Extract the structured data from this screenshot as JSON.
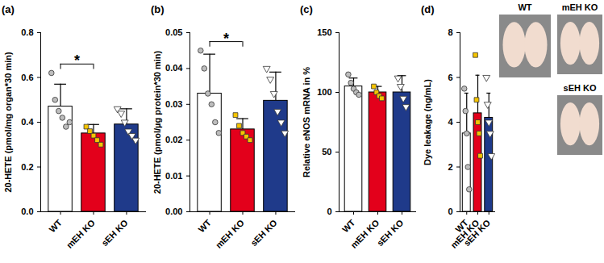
{
  "chart_data": [
    {
      "type": "bar",
      "title": "(a)",
      "ylabel": "20-HETE (pmol/mg organ*30 min)",
      "categories": [
        "WT",
        "mEH KO",
        "sEH KO"
      ],
      "values": [
        0.47,
        0.35,
        0.39
      ],
      "errors": [
        0.1,
        0.04,
        0.07
      ],
      "colors": [
        "#ffffff",
        "#e3001b",
        "#1f3a8a"
      ],
      "points": [
        {
          "color": "#bdbdbd",
          "marker": "circle",
          "values": [
            0.62,
            0.5,
            0.45,
            0.42,
            0.38,
            0.4
          ]
        },
        {
          "color": "#f5c400",
          "marker": "square",
          "values": [
            0.38,
            0.36,
            0.34,
            0.32,
            0.3
          ]
        },
        {
          "color": "#ffffff",
          "marker": "triangle-down",
          "values": [
            0.46,
            0.44,
            0.4,
            0.36,
            0.34,
            0.32
          ]
        }
      ],
      "ylim": [
        0,
        0.8
      ],
      "yticks": [
        {
          "value": 0,
          "label": "0.0"
        },
        {
          "value": 0.2,
          "label": "0.2"
        },
        {
          "value": 0.4,
          "label": "0.4"
        },
        {
          "value": 0.6,
          "label": "0.6"
        },
        {
          "value": 0.8,
          "label": "0.8"
        }
      ],
      "annotations": [
        {
          "text": "*",
          "from": 0,
          "to": 1
        }
      ]
    },
    {
      "type": "bar",
      "title": "(b)",
      "ylabel": "20-HETE (pmol/µg protein*30 min)",
      "categories": [
        "WT",
        "mEH KO",
        "sEH KO"
      ],
      "values": [
        0.033,
        0.023,
        0.031
      ],
      "errors": [
        0.011,
        0.003,
        0.008
      ],
      "colors": [
        "#ffffff",
        "#e3001b",
        "#1f3a8a"
      ],
      "points": [
        {
          "color": "#bdbdbd",
          "marker": "circle",
          "values": [
            0.045,
            0.04,
            0.033,
            0.03,
            0.025,
            0.022
          ]
        },
        {
          "color": "#f5c400",
          "marker": "square",
          "values": [
            0.027,
            0.024,
            0.022,
            0.021,
            0.02
          ]
        },
        {
          "color": "#ffffff",
          "marker": "triangle-down",
          "values": [
            0.04,
            0.037,
            0.033,
            0.028,
            0.025,
            0.022
          ]
        }
      ],
      "ylim": [
        0,
        0.05
      ],
      "yticks": [
        {
          "value": 0,
          "label": "0.00"
        },
        {
          "value": 0.01,
          "label": "0.01"
        },
        {
          "value": 0.02,
          "label": "0.02"
        },
        {
          "value": 0.03,
          "label": "0.03"
        },
        {
          "value": 0.04,
          "label": "0.04"
        },
        {
          "value": 0.05,
          "label": "0.05"
        }
      ],
      "annotations": [
        {
          "text": "*",
          "from": 0,
          "to": 1
        }
      ]
    },
    {
      "type": "bar",
      "title": "(c)",
      "ylabel": "Relative eNOS mRNA in %",
      "categories": [
        "WT",
        "mEH KO",
        "sEH KO"
      ],
      "values": [
        105,
        100,
        100
      ],
      "errors": [
        7,
        5,
        14
      ],
      "colors": [
        "#ffffff",
        "#e3001b",
        "#1f3a8a"
      ],
      "points": [
        {
          "color": "#bdbdbd",
          "marker": "circle",
          "values": [
            115,
            108,
            103,
            100,
            98
          ]
        },
        {
          "color": "#f5c400",
          "marker": "square",
          "values": [
            105,
            100,
            97,
            95
          ]
        },
        {
          "color": "#ffffff",
          "marker": "triangle-down",
          "values": [
            112,
            105,
            95,
            88
          ]
        }
      ],
      "ylim": [
        0,
        150
      ],
      "yticks": [
        0,
        50,
        100,
        150
      ],
      "annotations": []
    },
    {
      "type": "bar",
      "title": "(d)",
      "ylabel": "Dye leakage (ng/mL)",
      "categories": [
        "WT",
        "mEH KO",
        "sEH KO"
      ],
      "values": [
        3.5,
        4.4,
        4.2
      ],
      "errors": [
        1.8,
        1.7,
        1.1
      ],
      "colors": [
        "#ffffff",
        "#e3001b",
        "#1f3a8a"
      ],
      "points": [
        {
          "color": "#bdbdbd",
          "marker": "circle",
          "values": [
            5.5,
            4.5,
            3.5,
            2.0,
            1.0
          ]
        },
        {
          "color": "#f5c400",
          "marker": "square",
          "values": [
            7.0,
            5.0,
            4.0,
            3.5,
            2.5
          ]
        },
        {
          "color": "#ffffff",
          "marker": "triangle-down",
          "values": [
            6.0,
            4.8,
            4.0,
            3.5,
            2.5
          ]
        }
      ],
      "ylim": [
        0,
        8
      ],
      "yticks": [
        0,
        2,
        4,
        6,
        8
      ],
      "annotations": []
    }
  ],
  "images": {
    "labels": [
      "WT",
      "mEH KO",
      "sEH KO"
    ]
  }
}
